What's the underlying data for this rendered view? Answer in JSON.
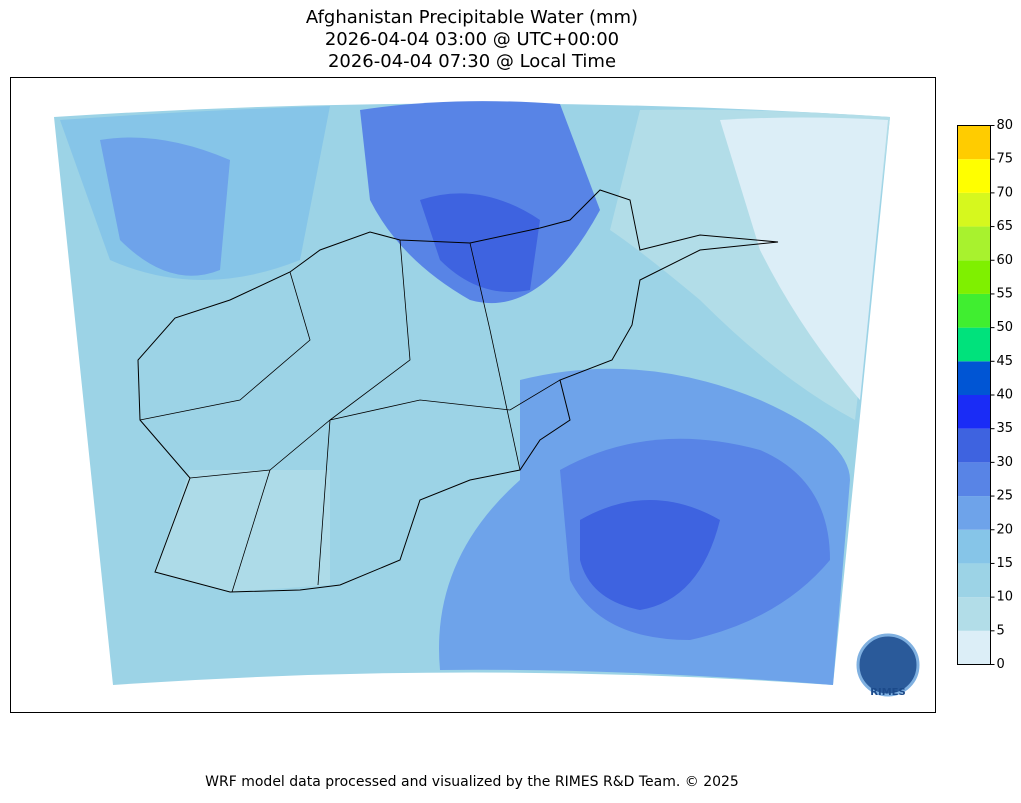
{
  "title": [
    "Afghanistan Precipitable Water (mm)",
    "2026-04-04 03:00 @ UTC+00:00",
    "2026-04-04 07:30 @ Local Time"
  ],
  "colorbar": {
    "lim": [
      0,
      80
    ],
    "ticks": [
      0,
      5,
      10,
      15,
      20,
      25,
      30,
      35,
      40,
      45,
      50,
      55,
      60,
      65,
      70,
      75,
      80
    ],
    "colors": [
      "#dceef7",
      "#b2dde8",
      "#9cd3e6",
      "#86c5e8",
      "#6ea3ea",
      "#5884e6",
      "#3e63e0",
      "#1a2cf6",
      "#0055d4",
      "#00e27c",
      "#40ee30",
      "#7ff000",
      "#a8f22e",
      "#d6f81e",
      "#ffff00",
      "#ffcc00"
    ]
  },
  "logo": "RIMES",
  "footer": "WRF model data processed and visualized by the RIMES R&D Team. © 2025"
}
